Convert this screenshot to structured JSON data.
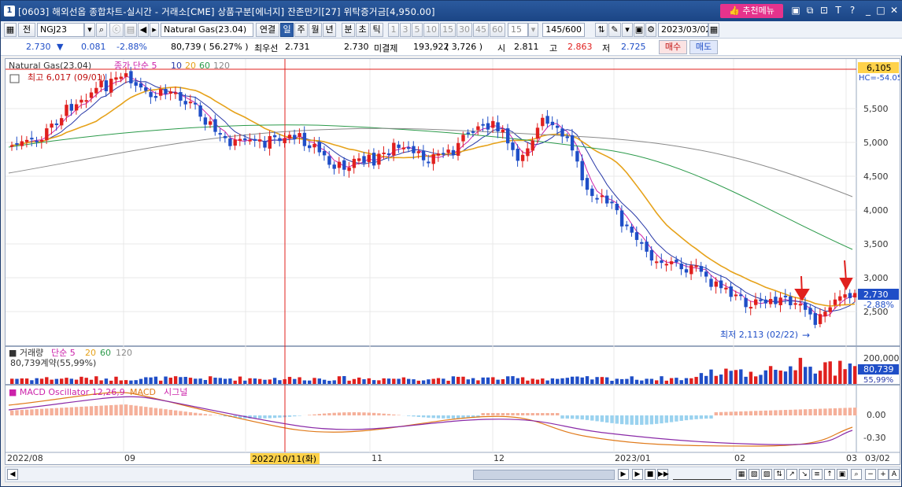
{
  "title": {
    "num": "1",
    "text": "[0603] 해외선옵 종합차트-실시간 - 거래소[CME] 상품구분[에너지] 잔존만기[27] 위탁증거금[4,950.00]",
    "recommend": "추천메뉴",
    "icons": [
      "restore-icon",
      "copy-icon",
      "pin-icon",
      "font-icon",
      "help-icon",
      "minimize-icon",
      "maximize-icon",
      "close-icon"
    ]
  },
  "toolbar1": {
    "jeon": "전",
    "code": "NGJ23",
    "name": "Natural Gas(23.04)",
    "periods": [
      "연결",
      "일",
      "주",
      "월",
      "년",
      "분",
      "초",
      "틱"
    ],
    "selected": "일",
    "intervals": [
      "1",
      "3",
      "5",
      "10",
      "15",
      "30",
      "45",
      "60"
    ],
    "interval_value": "15",
    "count": "145/600",
    "date": "2023/03/02"
  },
  "toolbar2": {
    "price": "2.730",
    "change": "0.081",
    "pct": "-2.88%",
    "volume": "80,739",
    "vol_pct": "( 56.27% )",
    "best_label": "최우선",
    "best": "2.731",
    "best2": "2.730",
    "open_int_label": "미결제",
    "open_int": "193,922",
    "oi_change": "( 3,726 )",
    "open_label": "시",
    "open": "2.811",
    "high_label": "고",
    "high": "2.863",
    "low_label": "저",
    "low": "2.725",
    "buy": "매수",
    "sell": "매도"
  },
  "chart": {
    "legend_main": "Natural Gas(23.04)",
    "legend_ma": "종가 단순 5",
    "ma": [
      "10",
      "20",
      "60",
      "120"
    ],
    "max_label": "최고 6,017 (09/01)",
    "min_label": "최저 2,113 (02/22)",
    "price_axis": [
      "5,500",
      "5,000",
      "4,500",
      "4,000",
      "3,500",
      "3,000",
      "2,500"
    ],
    "current_price": "2,730",
    "current_pct": "-2.88%",
    "top_price": "6,105",
    "top_sub": "HC=-54.05",
    "vol_legend": "거래량",
    "vol_ma": "단순 5",
    "vol_mas": [
      "20",
      "60",
      "120"
    ],
    "vol_info": "80,739계약(55,99%)",
    "vol_axis": [
      "200,000",
      "80,739",
      "55,99%"
    ],
    "macd_legend": "MACD Oscillator 12,26,9",
    "macd_label": "MACD",
    "signal_label": "시그널",
    "macd_axis": [
      "0.00",
      "-0.30"
    ],
    "x_labels": [
      "2022/08",
      "09",
      "11",
      "12",
      "2023/01",
      "02",
      "03",
      "03/02"
    ],
    "crosshair_date": "2022/10/11(화)"
  },
  "colors": {
    "up": "#e0201e",
    "down": "#1f4ec7",
    "ma5": "#cc22aa",
    "ma10": "#2a3aa8",
    "ma20": "#e6a21a",
    "ma60": "#2b9a4a",
    "ma120": "#8a8a8a"
  }
}
